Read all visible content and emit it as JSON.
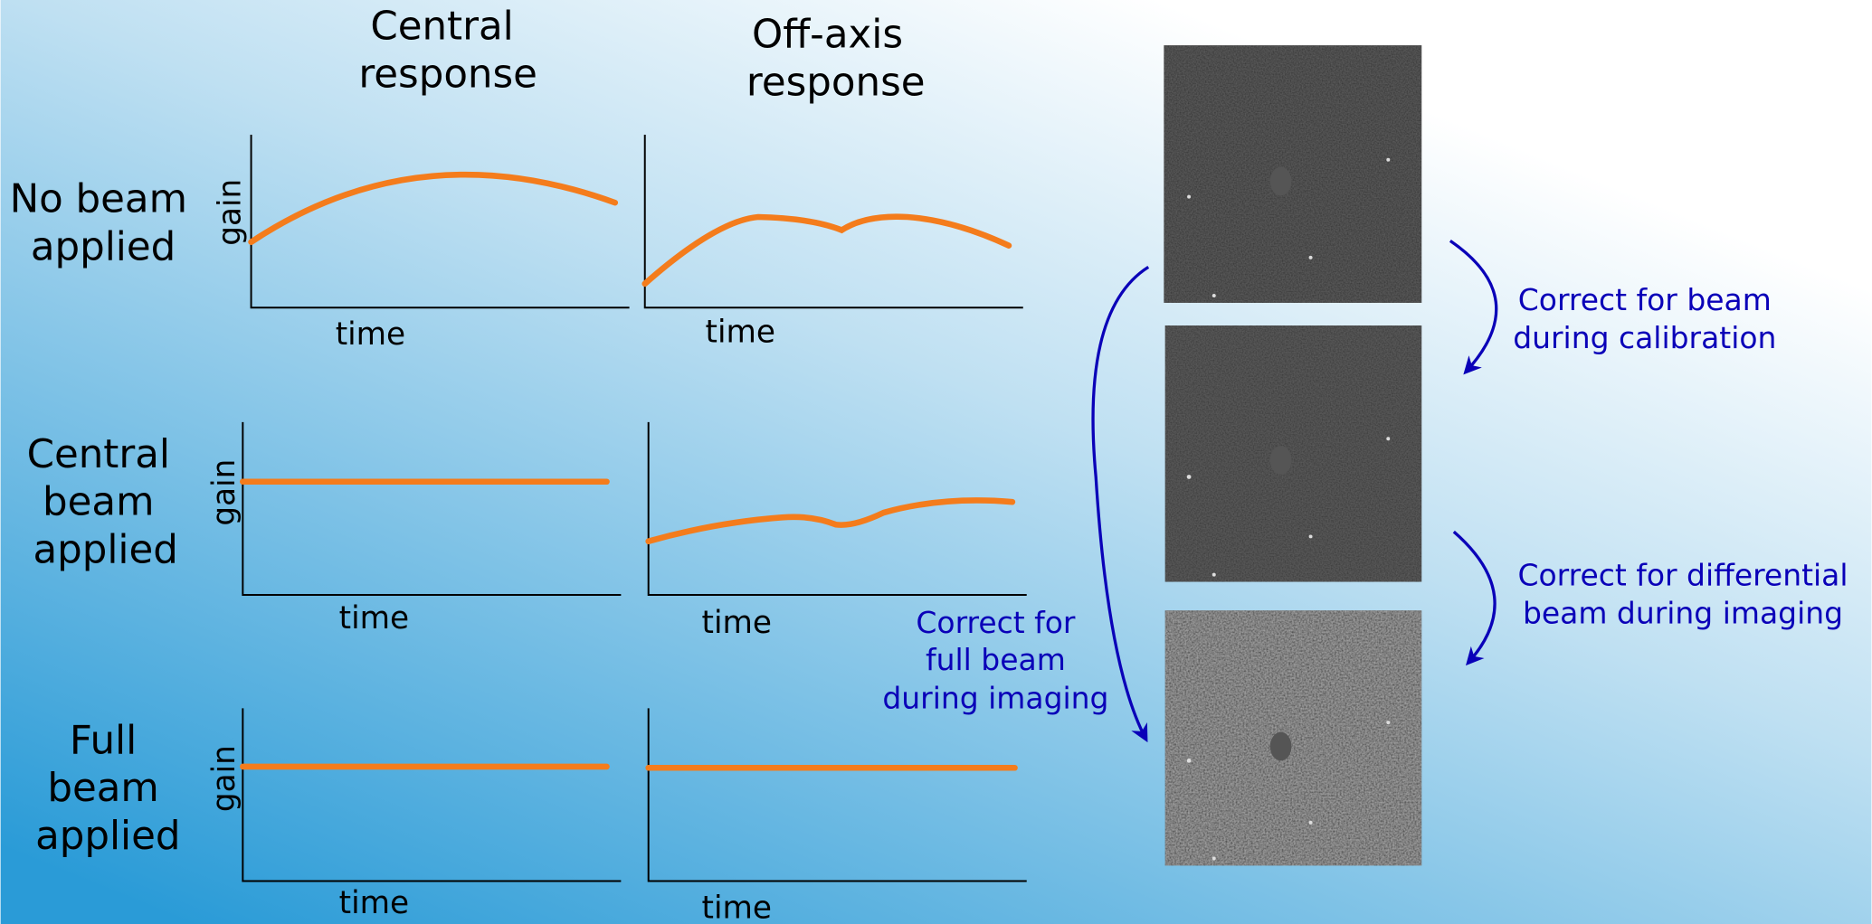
{
  "columns": [
    {
      "lines": [
        "Central",
        "response"
      ]
    },
    {
      "lines": [
        "Off-axis",
        "response"
      ]
    }
  ],
  "rows": [
    {
      "label": [
        "No beam",
        "applied"
      ],
      "central": {
        "y_label": "gain",
        "x_label": "time"
      },
      "off_axis": {
        "x_label": "time"
      }
    },
    {
      "label": [
        "Central",
        "beam",
        "applied"
      ],
      "central": {
        "y_label": "gain",
        "x_label": "time"
      },
      "off_axis": {
        "x_label": "time"
      }
    },
    {
      "label": [
        "Full",
        "beam",
        "applied"
      ],
      "central": {
        "y_label": "gain",
        "x_label": "time"
      },
      "off_axis": {
        "x_label": "time"
      }
    }
  ],
  "annotations": [
    {
      "lines": [
        "Correct for beam",
        "during calibration"
      ]
    },
    {
      "lines": [
        "Correct for differential",
        "beam during imaging"
      ]
    },
    {
      "lines": [
        "Correct for",
        "full beam",
        "during imaging"
      ]
    }
  ]
}
